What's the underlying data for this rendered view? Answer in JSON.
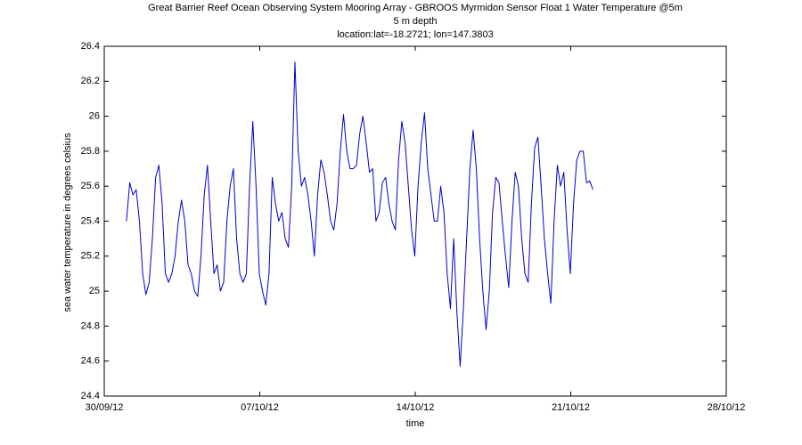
{
  "chart_data": {
    "type": "line",
    "title": "Great Barrier Reef Ocean Observing System Mooring Array - GBROOS Myrmidon Sensor Float 1 Water Temperature @5m",
    "subtitle": [
      "5 m depth",
      "location:lat=-18.2721; lon=147.3803"
    ],
    "x_label": "time",
    "y_label": "sea water temperature in degrees celsius",
    "color": "#0000d0",
    "grid": false,
    "xlim": [
      "2012-09-30",
      "2012-10-28"
    ],
    "xticks": [
      {
        "value": "2012-09-30",
        "label": "30/09/12"
      },
      {
        "value": "2012-10-07",
        "label": "07/10/12"
      },
      {
        "value": "2012-10-14",
        "label": "14/10/12"
      },
      {
        "value": "2012-10-21",
        "label": "21/10/12"
      },
      {
        "value": "2012-10-28",
        "label": "28/10/12"
      }
    ],
    "ylim": [
      24.4,
      26.4
    ],
    "yticks": [
      24.4,
      24.6,
      24.8,
      25,
      25.2,
      25.4,
      25.6,
      25.8,
      26,
      26.2,
      26.4
    ],
    "x": [
      "2012-10-01T00:00",
      "2012-10-01T03:30",
      "2012-10-01T07:00",
      "2012-10-01T10:30",
      "2012-10-01T14:00",
      "2012-10-01T17:30",
      "2012-10-01T21:00",
      "2012-10-02T00:30",
      "2012-10-02T04:00",
      "2012-10-02T07:30",
      "2012-10-02T11:00",
      "2012-10-02T14:30",
      "2012-10-02T18:00",
      "2012-10-02T21:30",
      "2012-10-03T01:00",
      "2012-10-03T04:30",
      "2012-10-03T08:00",
      "2012-10-03T11:30",
      "2012-10-03T15:00",
      "2012-10-03T18:30",
      "2012-10-03T22:00",
      "2012-10-04T01:30",
      "2012-10-04T05:00",
      "2012-10-04T08:30",
      "2012-10-04T12:00",
      "2012-10-04T15:30",
      "2012-10-04T19:00",
      "2012-10-04T22:30",
      "2012-10-05T02:00",
      "2012-10-05T05:30",
      "2012-10-05T09:00",
      "2012-10-05T12:30",
      "2012-10-05T16:00",
      "2012-10-05T19:30",
      "2012-10-05T23:00",
      "2012-10-06T02:30",
      "2012-10-06T06:00",
      "2012-10-06T09:30",
      "2012-10-06T13:00",
      "2012-10-06T16:30",
      "2012-10-06T20:00",
      "2012-10-06T23:30",
      "2012-10-07T03:00",
      "2012-10-07T06:30",
      "2012-10-07T10:00",
      "2012-10-07T13:30",
      "2012-10-07T17:00",
      "2012-10-07T20:30",
      "2012-10-08T00:00",
      "2012-10-08T03:30",
      "2012-10-08T07:00",
      "2012-10-08T10:30",
      "2012-10-08T14:00",
      "2012-10-08T17:30",
      "2012-10-08T21:00",
      "2012-10-09T00:30",
      "2012-10-09T04:00",
      "2012-10-09T07:30",
      "2012-10-09T11:00",
      "2012-10-09T14:30",
      "2012-10-09T18:00",
      "2012-10-09T21:30",
      "2012-10-10T01:00",
      "2012-10-10T04:30",
      "2012-10-10T08:00",
      "2012-10-10T11:30",
      "2012-10-10T15:00",
      "2012-10-10T18:30",
      "2012-10-10T22:00",
      "2012-10-11T01:30",
      "2012-10-11T05:00",
      "2012-10-11T08:30",
      "2012-10-11T12:00",
      "2012-10-11T15:30",
      "2012-10-11T19:00",
      "2012-10-11T22:30",
      "2012-10-12T02:00",
      "2012-10-12T05:30",
      "2012-10-12T09:00",
      "2012-10-12T12:30",
      "2012-10-12T16:00",
      "2012-10-12T19:30",
      "2012-10-12T23:00",
      "2012-10-13T02:30",
      "2012-10-13T06:00",
      "2012-10-13T09:30",
      "2012-10-13T13:00",
      "2012-10-13T16:30",
      "2012-10-13T20:00",
      "2012-10-13T23:30",
      "2012-10-14T03:00",
      "2012-10-14T06:30",
      "2012-10-14T10:00",
      "2012-10-14T13:30",
      "2012-10-14T17:00",
      "2012-10-14T20:30",
      "2012-10-15T00:00",
      "2012-10-15T03:30",
      "2012-10-15T07:00",
      "2012-10-15T10:30",
      "2012-10-15T14:00",
      "2012-10-15T17:30",
      "2012-10-15T21:00",
      "2012-10-16T00:30",
      "2012-10-16T04:00",
      "2012-10-16T07:30",
      "2012-10-16T11:00",
      "2012-10-16T14:30",
      "2012-10-16T18:00",
      "2012-10-16T21:30",
      "2012-10-17T01:00",
      "2012-10-17T04:30",
      "2012-10-17T08:00",
      "2012-10-17T11:30",
      "2012-10-17T15:00",
      "2012-10-17T18:30",
      "2012-10-17T22:00",
      "2012-10-18T01:30",
      "2012-10-18T05:00",
      "2012-10-18T08:30",
      "2012-10-18T12:00",
      "2012-10-18T15:30",
      "2012-10-18T19:00",
      "2012-10-18T22:30",
      "2012-10-19T02:00",
      "2012-10-19T05:30",
      "2012-10-19T09:00",
      "2012-10-19T12:30",
      "2012-10-19T16:00",
      "2012-10-19T19:30",
      "2012-10-19T23:00",
      "2012-10-20T02:30",
      "2012-10-20T06:00",
      "2012-10-20T09:30",
      "2012-10-20T13:00",
      "2012-10-20T16:30",
      "2012-10-20T20:00",
      "2012-10-20T23:30",
      "2012-10-21T03:00",
      "2012-10-21T06:30",
      "2012-10-21T10:00",
      "2012-10-21T13:30",
      "2012-10-21T17:00",
      "2012-10-21T20:30",
      "2012-10-22T00:00"
    ],
    "values": [
      25.4,
      25.62,
      25.55,
      25.58,
      25.4,
      25.1,
      24.98,
      25.05,
      25.3,
      25.65,
      25.72,
      25.5,
      25.1,
      25.05,
      25.1,
      25.2,
      25.4,
      25.52,
      25.4,
      25.15,
      25.1,
      25.0,
      24.97,
      25.2,
      25.55,
      25.72,
      25.4,
      25.1,
      25.15,
      25.0,
      25.05,
      25.4,
      25.6,
      25.7,
      25.3,
      25.1,
      25.05,
      25.1,
      25.6,
      25.97,
      25.6,
      25.1,
      25.0,
      24.92,
      25.1,
      25.65,
      25.5,
      25.4,
      25.45,
      25.3,
      25.25,
      25.6,
      26.31,
      25.8,
      25.6,
      25.65,
      25.55,
      25.4,
      25.2,
      25.55,
      25.75,
      25.68,
      25.55,
      25.4,
      25.35,
      25.5,
      25.8,
      26.01,
      25.8,
      25.7,
      25.7,
      25.72,
      25.9,
      26.0,
      25.85,
      25.68,
      25.7,
      25.4,
      25.45,
      25.62,
      25.65,
      25.5,
      25.4,
      25.35,
      25.75,
      25.97,
      25.85,
      25.6,
      25.35,
      25.2,
      25.6,
      25.85,
      26.02,
      25.7,
      25.55,
      25.4,
      25.4,
      25.6,
      25.45,
      25.1,
      24.9,
      25.3,
      24.88,
      24.57,
      24.9,
      25.3,
      25.7,
      25.92,
      25.7,
      25.3,
      25.0,
      24.78,
      25.0,
      25.45,
      25.65,
      25.62,
      25.4,
      25.2,
      25.02,
      25.4,
      25.68,
      25.6,
      25.3,
      25.1,
      25.05,
      25.5,
      25.82,
      25.88,
      25.6,
      25.3,
      25.1,
      24.93,
      25.4,
      25.72,
      25.6,
      25.68,
      25.35,
      25.1,
      25.5,
      25.75,
      25.8,
      25.8,
      25.62,
      25.63,
      25.58
    ]
  }
}
